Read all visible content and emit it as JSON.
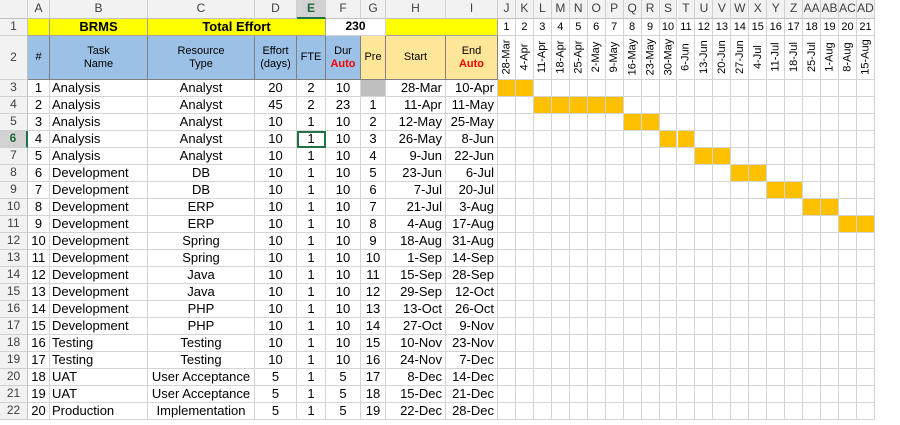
{
  "spreadsheet": {
    "col_letters_left": [
      "A",
      "B",
      "C",
      "D",
      "E",
      "F",
      "G",
      "H",
      "I"
    ],
    "col_letters_right": [
      "J",
      "K",
      "L",
      "M",
      "N",
      "O",
      "P",
      "Q",
      "R",
      "S",
      "T",
      "U",
      "V",
      "W",
      "X",
      "Y",
      "Z",
      "AA",
      "AB",
      "AC",
      "AD"
    ],
    "selected_column": "E",
    "selected_row": "6",
    "row_numbers": [
      "1",
      "2",
      "3",
      "4",
      "5",
      "6",
      "7",
      "8",
      "9",
      "10",
      "11",
      "12",
      "13",
      "14",
      "15",
      "16",
      "17",
      "18",
      "19",
      "20",
      "21",
      "22"
    ],
    "row1": {
      "project": "BRMS",
      "total_effort_label": "Total Effort",
      "total_effort_value": "230"
    },
    "headers": {
      "num": "#",
      "task_line1": "Task",
      "task_line2": "Name",
      "resource_line1": "Resource",
      "resource_line2": "Type",
      "effort_line1": "Effort",
      "effort_line2": "(days)",
      "fte": "FTE",
      "dur_line1": "Dur",
      "dur_line2": "Auto",
      "pre": "Pre",
      "start": "Start",
      "end_line1": "End",
      "end_line2": "Auto"
    },
    "week_numbers": [
      "1",
      "2",
      "3",
      "4",
      "5",
      "6",
      "7",
      "8",
      "9",
      "10",
      "11",
      "12",
      "13",
      "14",
      "15",
      "16",
      "17",
      "18",
      "19",
      "20",
      "21"
    ],
    "week_dates": [
      "28-Mar",
      "4-Apr",
      "11-Apr",
      "18-Apr",
      "25-Apr",
      "2-May",
      "9-May",
      "16-May",
      "23-May",
      "30-May",
      "6-Jun",
      "13-Jun",
      "20-Jun",
      "27-Jun",
      "4-Jul",
      "11-Jul",
      "18-Jul",
      "25-Jul",
      "1-Aug",
      "8-Aug",
      "15-Aug"
    ],
    "tasks": [
      {
        "num": "1",
        "name": "Analysis",
        "resource": "Analyst",
        "effort": "20",
        "fte": "2",
        "dur": "10",
        "pre": "",
        "start": "28-Mar",
        "end": "10-Apr"
      },
      {
        "num": "2",
        "name": "Analysis",
        "resource": "Analyst",
        "effort": "45",
        "fte": "2",
        "dur": "23",
        "pre": "1",
        "start": "11-Apr",
        "end": "11-May"
      },
      {
        "num": "3",
        "name": "Analysis",
        "resource": "Analyst",
        "effort": "10",
        "fte": "1",
        "dur": "10",
        "pre": "2",
        "start": "12-May",
        "end": "25-May"
      },
      {
        "num": "4",
        "name": "Analysis",
        "resource": "Analyst",
        "effort": "10",
        "fte": "1",
        "dur": "10",
        "pre": "3",
        "start": "26-May",
        "end": "8-Jun"
      },
      {
        "num": "5",
        "name": "Analysis",
        "resource": "Analyst",
        "effort": "10",
        "fte": "1",
        "dur": "10",
        "pre": "4",
        "start": "9-Jun",
        "end": "22-Jun"
      },
      {
        "num": "6",
        "name": "Development",
        "resource": "DB",
        "effort": "10",
        "fte": "1",
        "dur": "10",
        "pre": "5",
        "start": "23-Jun",
        "end": "6-Jul"
      },
      {
        "num": "7",
        "name": "Development",
        "resource": "DB",
        "effort": "10",
        "fte": "1",
        "dur": "10",
        "pre": "6",
        "start": "7-Jul",
        "end": "20-Jul"
      },
      {
        "num": "8",
        "name": "Development",
        "resource": "ERP",
        "effort": "10",
        "fte": "1",
        "dur": "10",
        "pre": "7",
        "start": "21-Jul",
        "end": "3-Aug"
      },
      {
        "num": "9",
        "name": "Development",
        "resource": "ERP",
        "effort": "10",
        "fte": "1",
        "dur": "10",
        "pre": "8",
        "start": "4-Aug",
        "end": "17-Aug"
      },
      {
        "num": "10",
        "name": "Development",
        "resource": "Spring",
        "effort": "10",
        "fte": "1",
        "dur": "10",
        "pre": "9",
        "start": "18-Aug",
        "end": "31-Aug"
      },
      {
        "num": "11",
        "name": "Development",
        "resource": "Spring",
        "effort": "10",
        "fte": "1",
        "dur": "10",
        "pre": "10",
        "start": "1-Sep",
        "end": "14-Sep"
      },
      {
        "num": "12",
        "name": "Development",
        "resource": "Java",
        "effort": "10",
        "fte": "1",
        "dur": "10",
        "pre": "11",
        "start": "15-Sep",
        "end": "28-Sep"
      },
      {
        "num": "13",
        "name": "Development",
        "resource": "Java",
        "effort": "10",
        "fte": "1",
        "dur": "10",
        "pre": "12",
        "start": "29-Sep",
        "end": "12-Oct"
      },
      {
        "num": "14",
        "name": "Development",
        "resource": "PHP",
        "effort": "10",
        "fte": "1",
        "dur": "10",
        "pre": "13",
        "start": "13-Oct",
        "end": "26-Oct"
      },
      {
        "num": "15",
        "name": "Development",
        "resource": "PHP",
        "effort": "10",
        "fte": "1",
        "dur": "10",
        "pre": "14",
        "start": "27-Oct",
        "end": "9-Nov"
      },
      {
        "num": "16",
        "name": "Testing",
        "resource": "Testing",
        "effort": "10",
        "fte": "1",
        "dur": "10",
        "pre": "15",
        "start": "10-Nov",
        "end": "23-Nov"
      },
      {
        "num": "17",
        "name": "Testing",
        "resource": "Testing",
        "effort": "10",
        "fte": "1",
        "dur": "10",
        "pre": "16",
        "start": "24-Nov",
        "end": "7-Dec"
      },
      {
        "num": "18",
        "name": "UAT",
        "resource": "User Acceptance",
        "effort": "5",
        "fte": "1",
        "dur": "5",
        "pre": "17",
        "start": "8-Dec",
        "end": "14-Dec"
      },
      {
        "num": "19",
        "name": "UAT",
        "resource": "User Acceptance",
        "effort": "5",
        "fte": "1",
        "dur": "5",
        "pre": "18",
        "start": "15-Dec",
        "end": "21-Dec"
      },
      {
        "num": "20",
        "name": "Production",
        "resource": "Implementation",
        "effort": "5",
        "fte": "1",
        "dur": "5",
        "pre": "19",
        "start": "22-Dec",
        "end": "28-Dec"
      }
    ],
    "gantt_bars": [
      {
        "task": "1",
        "weeks": [
          1,
          2
        ]
      },
      {
        "task": "2",
        "weeks": [
          3,
          4,
          5,
          6,
          7
        ]
      },
      {
        "task": "3",
        "weeks": [
          8,
          9
        ]
      },
      {
        "task": "4",
        "weeks": [
          10,
          11
        ]
      },
      {
        "task": "5",
        "weeks": [
          12,
          13
        ]
      },
      {
        "task": "6",
        "weeks": [
          14,
          15
        ]
      },
      {
        "task": "7",
        "weeks": [
          16,
          17
        ]
      },
      {
        "task": "8",
        "weeks": [
          18,
          19
        ]
      },
      {
        "task": "9",
        "weeks": [
          20,
          21
        ]
      }
    ],
    "colors": {
      "header_blue": "#9bc2e6",
      "header_orange": "#ffe699",
      "yellow": "#ffff00",
      "gantt_fill": "#ffc000",
      "auto_red": "#ff0000",
      "selection_green": "#217346"
    }
  }
}
